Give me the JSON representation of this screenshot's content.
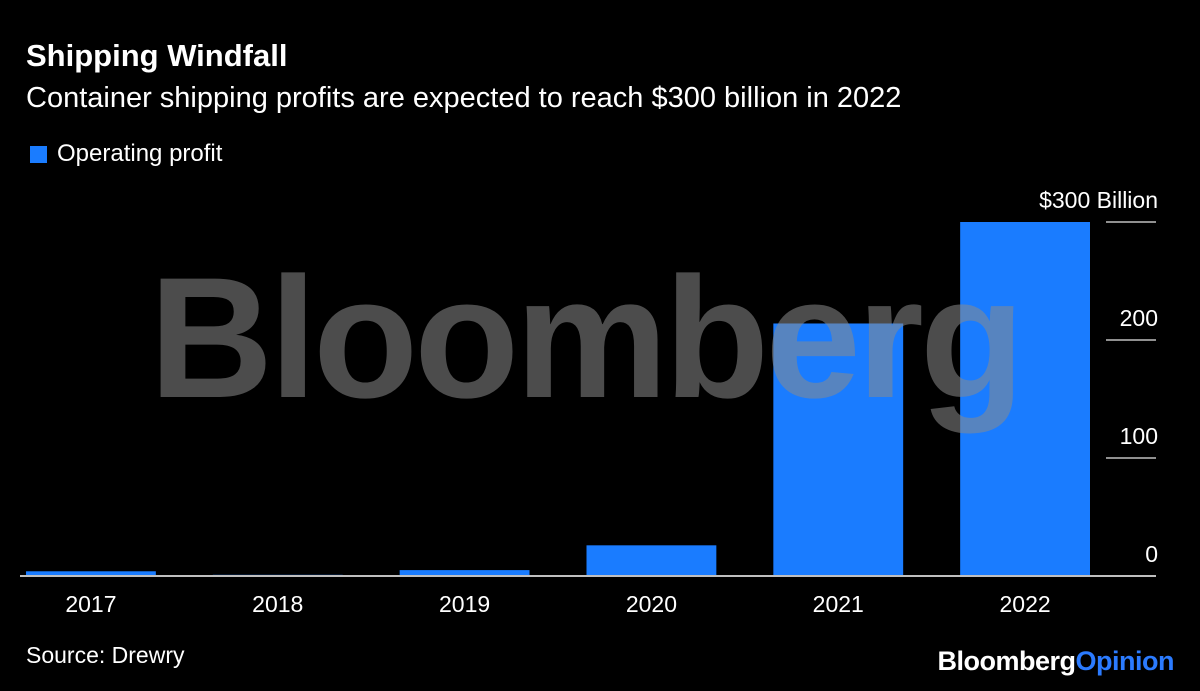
{
  "header": {
    "title": "Shipping Windfall",
    "subtitle": "Container shipping profits are expected to reach $300 billion in 2022"
  },
  "watermark": "Bloomberg",
  "footer": {
    "source": "Source: Drewry",
    "brand_part1": "Bloomberg",
    "brand_part2": "Opinion"
  },
  "colors": {
    "background": "#000000",
    "bar": "#1a7cff",
    "text": "#ffffff",
    "watermark": "#8a8a8a",
    "brand_opinion": "#2b7bff"
  },
  "chart_data": {
    "type": "bar",
    "categories": [
      "2017",
      "2018",
      "2019",
      "2020",
      "2021",
      "2022"
    ],
    "series": [
      {
        "name": "Operating profit",
        "values": [
          4,
          1,
          5,
          26,
          214,
          300
        ]
      }
    ],
    "title": "Shipping Windfall",
    "subtitle": "Container shipping profits are expected to reach $300 billion in 2022",
    "ylabel": "",
    "y_unit_label": "$300 Billion",
    "ylim": [
      0,
      300
    ],
    "yticks": [
      0,
      100,
      200,
      300
    ],
    "ytick_labels": [
      "0",
      "100",
      "200",
      "$300 Billion"
    ],
    "legend": "top-left",
    "y_axis_position": "right"
  }
}
